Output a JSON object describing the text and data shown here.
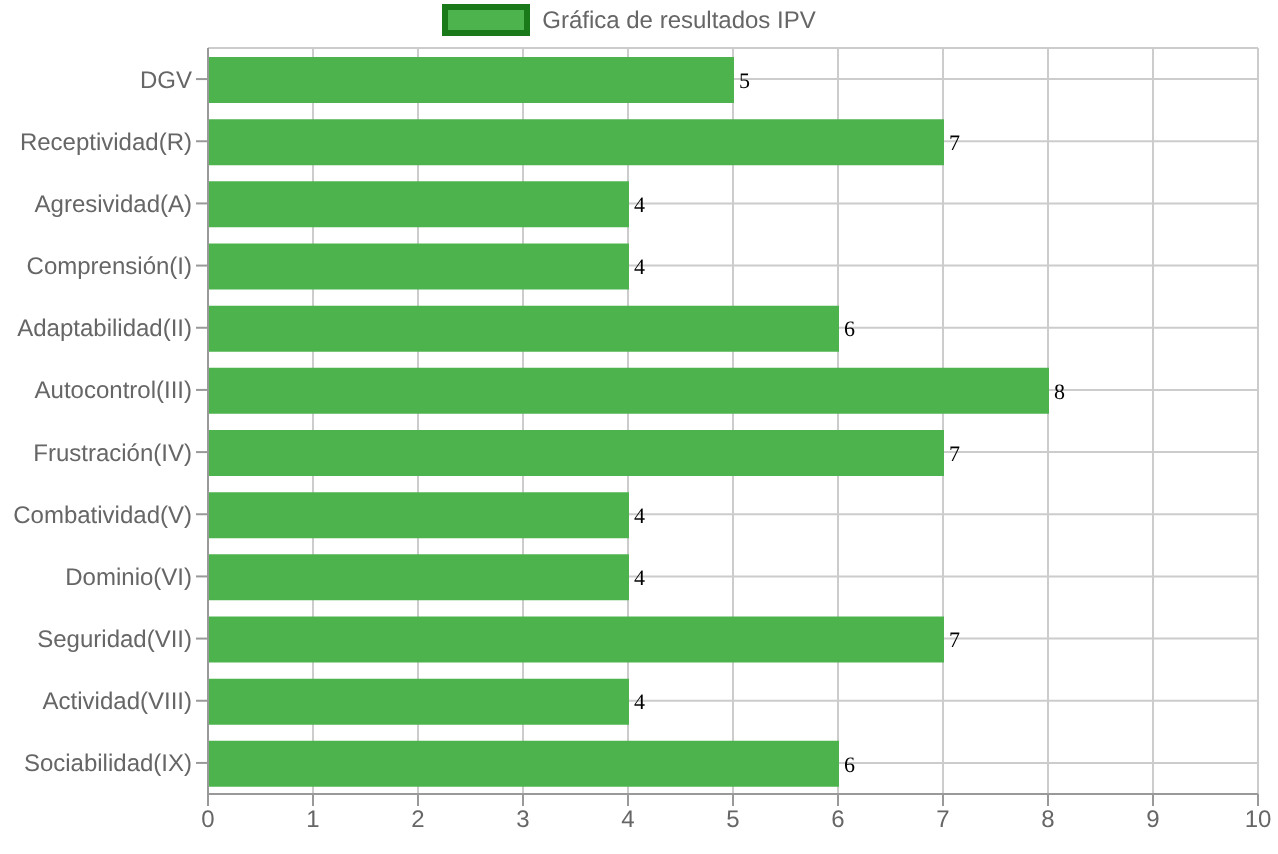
{
  "chart_data": {
    "type": "bar",
    "orientation": "horizontal",
    "categories": [
      "DGV",
      "Receptividad(R)",
      "Agresividad(A)",
      "Comprensión(I)",
      "Adaptabilidad(II)",
      "Autocontrol(III)",
      "Frustración(IV)",
      "Combatividad(V)",
      "Dominio(VI)",
      "Seguridad(VII)",
      "Actividad(VIII)",
      "Sociabilidad(IX)"
    ],
    "series": [
      {
        "name": "Gráfica de resultados IPV",
        "color": "#4db34d",
        "values": [
          5,
          7,
          4,
          4,
          6,
          8,
          7,
          4,
          4,
          7,
          4,
          6
        ]
      }
    ],
    "xlim": [
      0,
      10
    ],
    "xticks": [
      0,
      1,
      2,
      3,
      4,
      5,
      6,
      7,
      8,
      9,
      10
    ],
    "grid": true,
    "legend": "top",
    "data_labels": true
  }
}
